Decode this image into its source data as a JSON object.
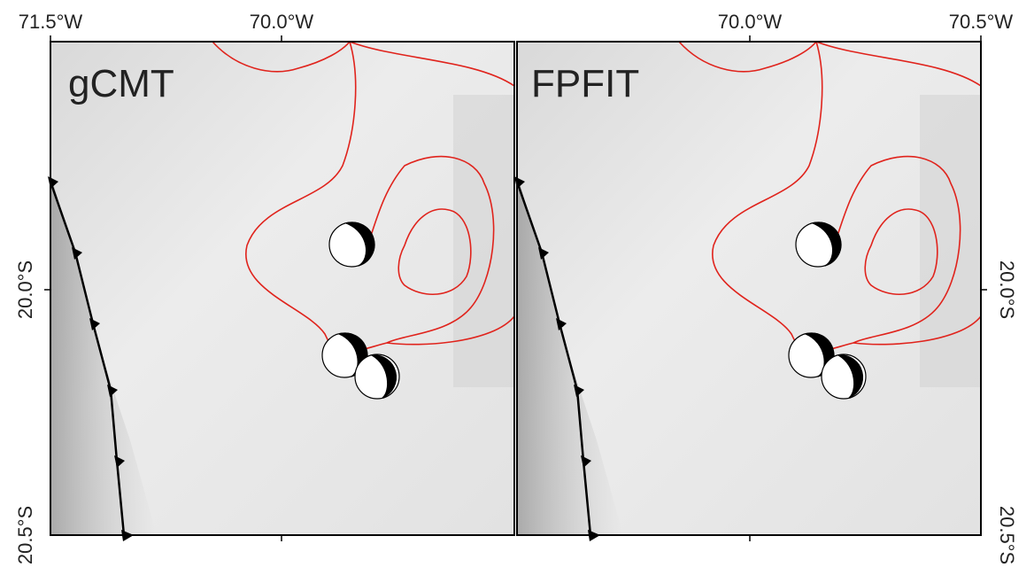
{
  "panels": [
    {
      "label": "gCMT",
      "top_ticks": [
        "71.5°W",
        "70.0°W"
      ],
      "side_ticks": [
        "20.0°S",
        "20.5°S"
      ]
    },
    {
      "label": "FPFIT",
      "top_ticks": [
        "70.0°W",
        "70.5°W"
      ],
      "side_ticks": [
        "20.0°S",
        "20.5°S"
      ]
    }
  ]
}
